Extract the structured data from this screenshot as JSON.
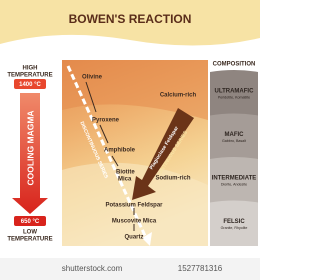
{
  "title": "BOWEN'S REACTION",
  "left": {
    "high": [
      "HIGH",
      "TEMPERATURE"
    ],
    "high_temp": "1400 °C",
    "arrow": "COOLING MAGMA",
    "low_temp": "650 °C",
    "low": [
      "LOW",
      "TEMPERATURE"
    ]
  },
  "series": {
    "discontinuous": "DISCONTINUOUS SERIES",
    "continuous": "CONTINUOUS SERIES",
    "plagioclase": "Plagioclase Feldspar",
    "calcium": "Calcium-rich",
    "sodium": "Sodium-rich"
  },
  "minerals": {
    "olivine": "Olivine",
    "pyroxene": "Pyroxene",
    "amphibole": "Amphibole",
    "biotite": [
      "Biotite",
      "Mica"
    ],
    "potassium": "Potassium Feldspar",
    "muscovite": "Muscovite Mica",
    "quartz": "Quartz"
  },
  "composition": {
    "header": "COMPOSITION",
    "rows": [
      {
        "name": "ULTRAMAFIC",
        "rocks": "Peridotite, Komatiite"
      },
      {
        "name": "MAFIC",
        "rocks": "Gabbro, Basalt"
      },
      {
        "name": "INTERMEDIATE",
        "rocks": "Diorite, Andesite"
      },
      {
        "name": "FELSIC",
        "rocks": "Granite, Rhyolite"
      }
    ]
  },
  "watermark": {
    "site": "shutterstock.com",
    "id": "1527781316"
  }
}
